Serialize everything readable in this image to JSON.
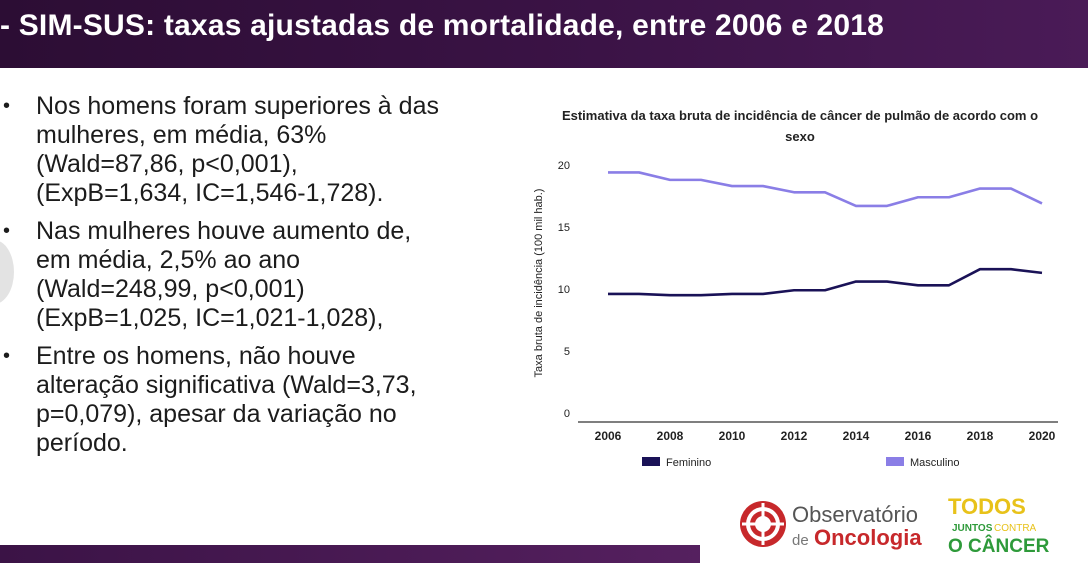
{
  "header": {
    "title": "- SIM-SUS: taxas ajustadas de mortalidade, entre 2006 e 2018"
  },
  "bullets": [
    {
      "lines": [
        "Nos homens foram superiores à das",
        "mulheres, em média, 63%",
        "(Wald=87,86, p<0,001),",
        "(ExpB=1,634, IC=1,546-1,728)."
      ]
    },
    {
      "lines": [
        "Nas mulheres houve aumento de,",
        "em média, 2,5% ao ano",
        "(Wald=248,99, p<0,001)",
        "(ExpB=1,025, IC=1,021-1,028),"
      ]
    },
    {
      "lines": [
        "Entre os homens, não houve",
        "alteração significativa (Wald=3,73,",
        "p=0,079), apesar da variação no",
        "período."
      ]
    }
  ],
  "chart_data": {
    "type": "line",
    "title_lines": [
      "Estimativa da taxa bruta de incidência de câncer de pulmão de acordo com o",
      "sexo"
    ],
    "xlabel": "",
    "ylabel": "Taxa bruta de incidência (100 mil hab.)",
    "xlim": [
      2006,
      2020
    ],
    "ylim": [
      0,
      20
    ],
    "x_ticks": [
      2006,
      2008,
      2010,
      2012,
      2014,
      2016,
      2018,
      2020
    ],
    "y_ticks": [
      0,
      5,
      10,
      15,
      20
    ],
    "x": [
      2006,
      2007,
      2008,
      2009,
      2010,
      2011,
      2012,
      2013,
      2014,
      2015,
      2016,
      2017,
      2018,
      2019,
      2020
    ],
    "series": [
      {
        "name": "Feminino",
        "color": "#1a1257",
        "values": [
          9.6,
          9.6,
          9.5,
          9.5,
          9.6,
          9.6,
          9.9,
          9.9,
          10.6,
          10.6,
          10.3,
          10.3,
          11.6,
          11.6,
          11.3
        ]
      },
      {
        "name": "Masculino",
        "color": "#8a7ee6",
        "values": [
          19.4,
          19.4,
          18.8,
          18.8,
          18.3,
          18.3,
          17.8,
          17.8,
          16.7,
          16.7,
          17.4,
          17.4,
          18.1,
          18.1,
          16.9
        ]
      }
    ],
    "grid": false,
    "legend_position": "bottom"
  },
  "logos": {
    "observatorio_line1": "Observatório",
    "observatorio_de": "de",
    "observatorio_line2": "Oncologia",
    "todos_line1": "TODOS",
    "todos_line2_a": "JUNTOS",
    "todos_line2_b": "CONTRA",
    "todos_line3": "O CÂNCER"
  },
  "colors": {
    "header": "#3b1346",
    "accent_red": "#c7282b",
    "todos_green": "#2e9a3a",
    "todos_yellow": "#e8c21a"
  }
}
